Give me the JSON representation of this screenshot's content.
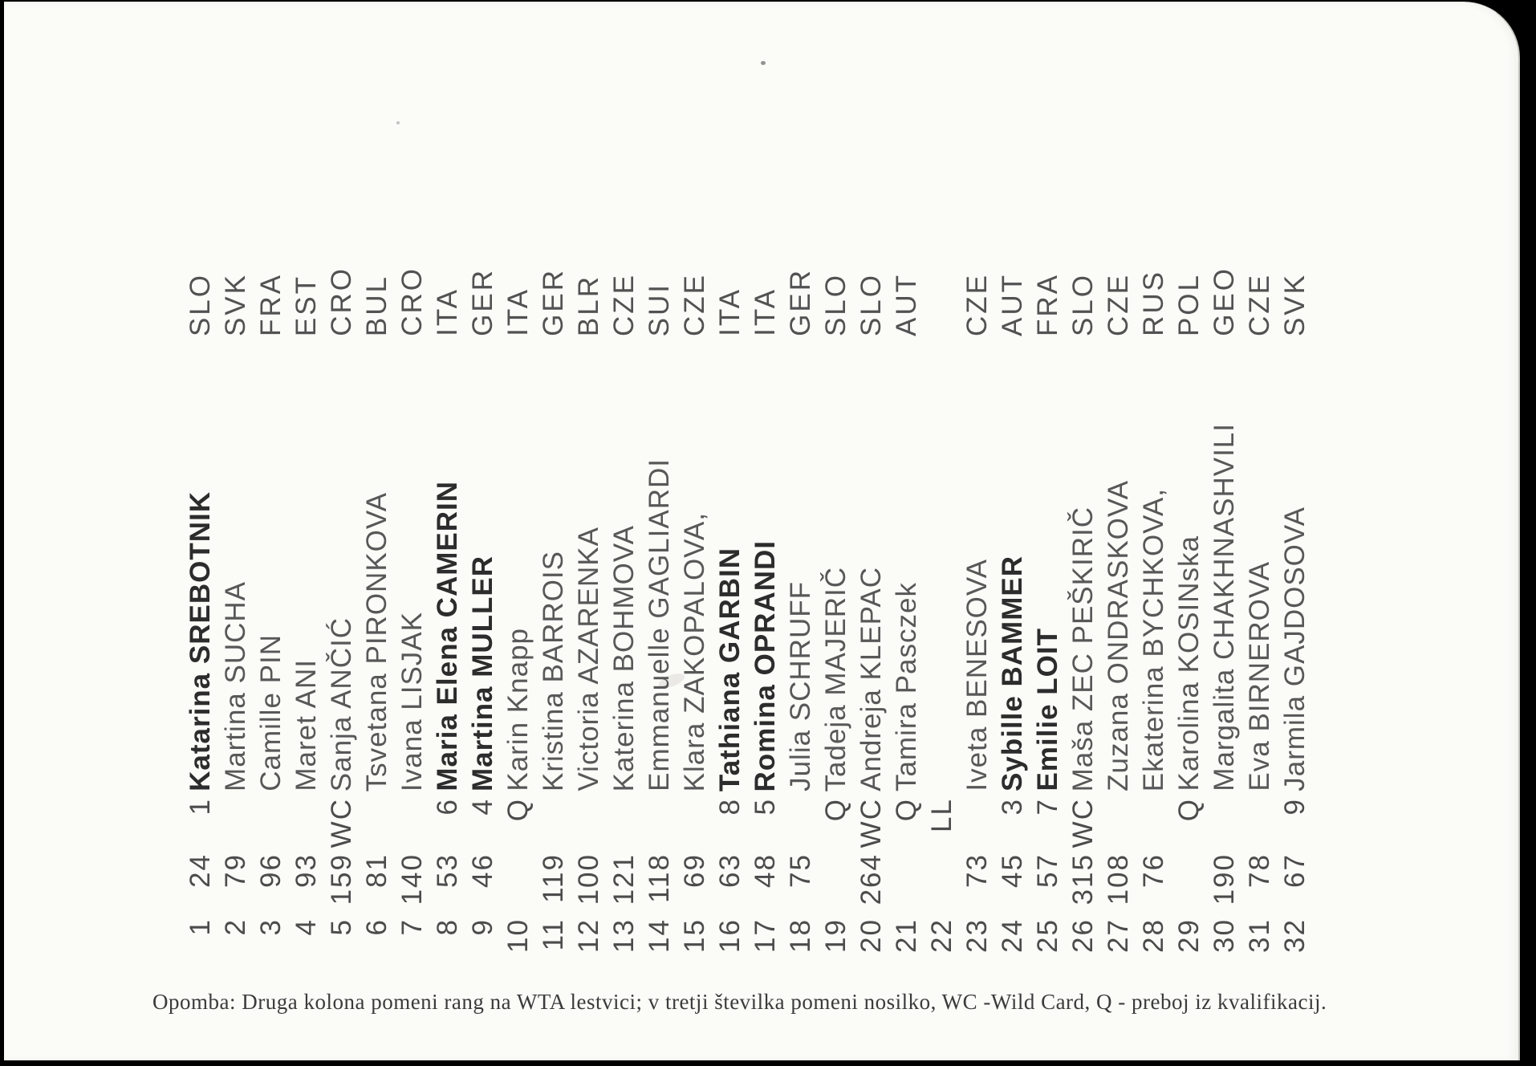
{
  "colors": {
    "scanner_background": "#000000",
    "paper": "#fbfbf8",
    "ink_light": "#585858",
    "ink_bold": "#2c2c2c"
  },
  "note": "Opomba: Druga kolona pomeni rang na WTA lestvici; v tretji številka pomeni nosilko, WC -Wild Card, Q - preboj iz kvalifikacij.",
  "table": {
    "entries": [
      {
        "no": "1",
        "rank": "24",
        "seed": "1",
        "name": "Katarina SREBOTNIK",
        "country": "SLO",
        "bold": true
      },
      {
        "no": "2",
        "rank": "79",
        "seed": "",
        "name": "Martina SUCHA",
        "country": "SVK",
        "bold": false
      },
      {
        "no": "3",
        "rank": "96",
        "seed": "",
        "name": "Camille PIN",
        "country": "FRA",
        "bold": false
      },
      {
        "no": "4",
        "rank": "93",
        "seed": "",
        "name": "Maret ANI",
        "country": "EST",
        "bold": false
      },
      {
        "no": "5",
        "rank": "159",
        "seed": "WC",
        "name": "Sanja ANČIĆ",
        "country": "CRO",
        "bold": false
      },
      {
        "no": "6",
        "rank": "81",
        "seed": "",
        "name": "Tsvetana PIRONKOVA",
        "country": "BUL",
        "bold": false
      },
      {
        "no": "7",
        "rank": "140",
        "seed": "",
        "name": "Ivana LISJAK",
        "country": "CRO",
        "bold": false
      },
      {
        "no": "8",
        "rank": "53",
        "seed": "6",
        "name": "Maria Elena CAMERIN",
        "country": "ITA",
        "bold": true
      },
      {
        "no": "9",
        "rank": "46",
        "seed": "4",
        "name": "Martina MULLER",
        "country": "GER",
        "bold": true
      },
      {
        "no": "10",
        "rank": "",
        "seed": "Q",
        "name": "Karin Knapp",
        "country": "ITA",
        "bold": false
      },
      {
        "no": "11",
        "rank": "119",
        "seed": "",
        "name": "Kristina BARROIS",
        "country": "GER",
        "bold": false
      },
      {
        "no": "12",
        "rank": "100",
        "seed": "",
        "name": "Victoria AZARENKA",
        "country": "BLR",
        "bold": false
      },
      {
        "no": "13",
        "rank": "121",
        "seed": "",
        "name": "Katerina BOHMOVA",
        "country": "CZE",
        "bold": false
      },
      {
        "no": "14",
        "rank": "118",
        "seed": "",
        "name": "Emmanuelle GAGLIARDI",
        "country": "SUI",
        "bold": false
      },
      {
        "no": "15",
        "rank": "69",
        "seed": "",
        "name": "Klara ZAKOPALOVA,",
        "country": "CZE",
        "bold": false
      },
      {
        "no": "16",
        "rank": "63",
        "seed": "8",
        "name": "Tathiana GARBIN",
        "country": "ITA",
        "bold": true
      },
      {
        "no": "17",
        "rank": "48",
        "seed": "5",
        "name": "Romina OPRANDI",
        "country": "ITA",
        "bold": true
      },
      {
        "no": "18",
        "rank": "75",
        "seed": "",
        "name": "Julia SCHRUFF",
        "country": "GER",
        "bold": false
      },
      {
        "no": "19",
        "rank": "",
        "seed": "Q",
        "name": "Tadeja MAJERIČ",
        "country": "SLO",
        "bold": false
      },
      {
        "no": "20",
        "rank": "264",
        "seed": "WC",
        "name": "Andreja KLEPAC",
        "country": "SLO",
        "bold": false
      },
      {
        "no": "21",
        "rank": "",
        "seed": "Q",
        "name": "Tamira Pasczek",
        "country": "AUT",
        "bold": false
      },
      {
        "no": "22",
        "rank": "",
        "seed": "LL",
        "name": "",
        "country": "",
        "bold": false
      },
      {
        "no": "23",
        "rank": "73",
        "seed": "",
        "name": "Iveta BENESOVA",
        "country": "CZE",
        "bold": false
      },
      {
        "no": "24",
        "rank": "45",
        "seed": "3",
        "name": "Sybille BAMMER",
        "country": "AUT",
        "bold": true
      },
      {
        "no": "25",
        "rank": "57",
        "seed": "7",
        "name": "Emilie LOIT",
        "country": "FRA",
        "bold": true
      },
      {
        "no": "26",
        "rank": "315",
        "seed": "WC",
        "name": "Maša ZEC PEŠKIRIČ",
        "country": "SLO",
        "bold": false
      },
      {
        "no": "27",
        "rank": "108",
        "seed": "",
        "name": "Zuzana ONDRASKOVA",
        "country": "CZE",
        "bold": false
      },
      {
        "no": "28",
        "rank": "76",
        "seed": "",
        "name": "Ekaterina BYCHKOVA,",
        "country": "RUS",
        "bold": false
      },
      {
        "no": "29",
        "rank": "",
        "seed": "Q",
        "name": "Karolina KOSINska",
        "country": "POL",
        "bold": false
      },
      {
        "no": "30",
        "rank": "190",
        "seed": "",
        "name": "Margalita CHAKHNASHVILI",
        "country": "GEO",
        "bold": false
      },
      {
        "no": "31",
        "rank": "78",
        "seed": "",
        "name": "Eva BIRNEROVA",
        "country": "CZE",
        "bold": false
      },
      {
        "no": "32",
        "rank": "67",
        "seed": "9",
        "name": "Jarmila GAJDOSOVA",
        "country": "SVK",
        "bold": false
      }
    ]
  }
}
